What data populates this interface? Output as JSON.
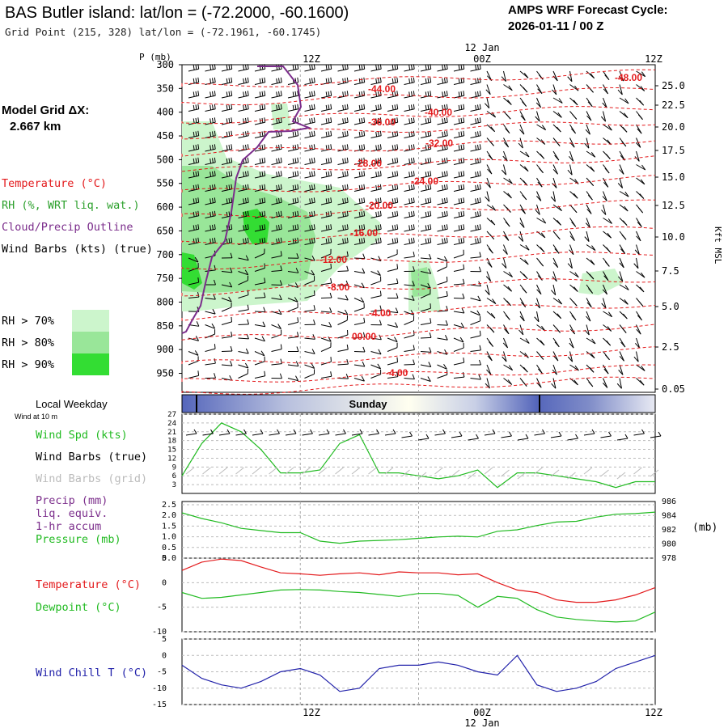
{
  "header": {
    "title": "BAS Butler island:  lat/lon = (-72.2000, -60.1600)",
    "subtitle": "Grid Point (215, 328) lat/lon = (-72.1961, -60.1745)",
    "cycle_label": "AMPS WRF Forecast Cycle:",
    "cycle_value": "2026-01-11 / 00  Z"
  },
  "sidebar": {
    "grid_label": "Model Grid ΔX:",
    "grid_value": "2.667 km",
    "legend": [
      {
        "text": "Temperature (°C)",
        "color": "#e31a1c"
      },
      {
        "text": "RH (%, WRT liq. wat.)",
        "color": "#2ca02c"
      },
      {
        "text": "Cloud/Precip Outline",
        "color": "#7b2d8b"
      },
      {
        "text": "Wind Barbs (kts) (true)",
        "color": "#000000"
      }
    ],
    "rh_keys": [
      {
        "text": "RH > 70%",
        "color": "#ccf5cc"
      },
      {
        "text": "RH > 80%",
        "color": "#99e699"
      },
      {
        "text": "RH > 90%",
        "color": "#33dd33"
      }
    ]
  },
  "time_axis": {
    "top_labels": [
      "12Z",
      "00Z",
      "12Z"
    ],
    "date_label": "12 Jan",
    "bottom_labels": [
      "12Z",
      "00Z",
      "12Z"
    ],
    "bottom_date": "12 Jan"
  },
  "weekday": {
    "label": "Local Weekday",
    "day": "Sunday",
    "sublabel": "Wind at 10 m"
  },
  "panels": {
    "wind": {
      "labels": [
        {
          "text": "Wind Spd (kts)",
          "color": "#22bb22"
        },
        {
          "text": "Wind Barbs (true)",
          "color": "#000000"
        },
        {
          "text": "Wind Barbs (grid)",
          "color": "#bbbbbb"
        }
      ]
    },
    "pressure": {
      "labels": [
        {
          "text": "Precip (mm)",
          "color": "#7b2d8b"
        },
        {
          "text": "liq. equiv.",
          "color": "#7b2d8b"
        },
        {
          "text": "1-hr accum",
          "color": "#7b2d8b"
        },
        {
          "text": "Pressure (mb)",
          "color": "#22bb22"
        }
      ],
      "right_unit": "(mb)"
    },
    "temp": {
      "labels": [
        {
          "text": "Temperature (°C)",
          "color": "#e31a1c"
        },
        {
          "text": "Dewpoint (°C)",
          "color": "#22bb22"
        }
      ]
    },
    "chill": {
      "labels": [
        {
          "text": "Wind Chill T (°C)",
          "color": "#2222aa"
        }
      ]
    }
  },
  "chart_data": [
    {
      "type": "heatmap",
      "y_axis_label": "P (mb)",
      "y_ticks": [
        300,
        350,
        400,
        450,
        500,
        550,
        600,
        650,
        700,
        750,
        800,
        850,
        900,
        950
      ],
      "right_axis_label": "Kft MSL",
      "right_ticks": [
        "25.0",
        "22.5",
        "20.0",
        "17.5",
        "15.0",
        "12.5",
        "10.0",
        "7.5",
        "5.0",
        "2.5",
        "0.05"
      ],
      "temperature_contour_labels": [
        "-48.00",
        "-44.00",
        "-40.00",
        "-36.00",
        "-32.00",
        "-28.00",
        "-24.00",
        "-20.00",
        "-16.00",
        "-12.00",
        "-8.00",
        "-4.00",
        "00.00",
        "-4.00"
      ]
    },
    {
      "type": "line",
      "name": "Wind Spd (kts)",
      "y_ticks": [
        3,
        6,
        9,
        12,
        15,
        18,
        21,
        24,
        27
      ],
      "ylim": [
        0,
        27
      ],
      "x_hours": [
        0,
        2,
        4,
        6,
        8,
        10,
        12,
        14,
        16,
        18,
        20,
        22,
        24,
        26,
        28,
        30,
        32,
        34,
        36,
        38,
        40,
        42,
        44,
        46,
        48
      ],
      "values": [
        6,
        17,
        24,
        21,
        15,
        7,
        7,
        8,
        17,
        20,
        7,
        7,
        6,
        5,
        6,
        8,
        2,
        7,
        7,
        6,
        5,
        4,
        2,
        4,
        4
      ]
    },
    {
      "type": "line",
      "name": "Pressure (mb)",
      "left_ticks": [
        "0.0",
        "0.5",
        "1.0",
        "1.5",
        "2.0",
        "2.5"
      ],
      "right_ticks": [
        978,
        980,
        982,
        984,
        986
      ],
      "ylim": [
        978,
        986
      ],
      "x_hours": [
        0,
        2,
        4,
        6,
        8,
        10,
        12,
        14,
        16,
        18,
        20,
        22,
        24,
        26,
        28,
        30,
        32,
        34,
        36,
        38,
        40,
        42,
        44,
        46,
        48
      ],
      "values": [
        984.4,
        983.6,
        983.0,
        982.2,
        981.9,
        981.6,
        981.6,
        980.4,
        980.1,
        980.4,
        980.5,
        980.6,
        980.8,
        981.0,
        981.1,
        981.0,
        981.8,
        982.0,
        982.6,
        983.1,
        983.2,
        983.8,
        984.2,
        984.3,
        984.5
      ]
    },
    {
      "type": "line",
      "y_ticks": [
        5,
        0,
        -5,
        -10
      ],
      "ylim": [
        -10,
        5
      ],
      "x_hours": [
        0,
        2,
        4,
        6,
        8,
        10,
        12,
        14,
        16,
        18,
        20,
        22,
        24,
        26,
        28,
        30,
        32,
        34,
        36,
        38,
        40,
        42,
        44,
        46,
        48
      ],
      "series": [
        {
          "name": "Temperature (°C)",
          "color": "#e31a1c",
          "values": [
            2.5,
            4.2,
            4.8,
            4.5,
            3.2,
            2.0,
            1.8,
            1.5,
            1.8,
            2.0,
            1.6,
            2.2,
            2.0,
            2.0,
            1.6,
            1.8,
            0.0,
            -1.5,
            -2.0,
            -3.5,
            -4.0,
            -4.0,
            -3.5,
            -2.5,
            -1.0
          ]
        },
        {
          "name": "Dewpoint (°C)",
          "color": "#22bb22",
          "values": [
            -2.0,
            -3.2,
            -3.0,
            -2.5,
            -2.0,
            -1.5,
            -1.4,
            -1.5,
            -1.8,
            -2.0,
            -2.4,
            -2.8,
            -2.2,
            -2.2,
            -2.6,
            -5.0,
            -2.8,
            -3.2,
            -5.5,
            -7.0,
            -7.5,
            -7.8,
            -8.0,
            -7.8,
            -6.0
          ]
        }
      ]
    },
    {
      "type": "line",
      "name": "Wind Chill T (°C)",
      "y_ticks": [
        5,
        0,
        -5,
        -10,
        -15
      ],
      "ylim": [
        -15,
        5
      ],
      "x_hours": [
        0,
        2,
        4,
        6,
        8,
        10,
        12,
        14,
        16,
        18,
        20,
        22,
        24,
        26,
        28,
        30,
        32,
        34,
        36,
        38,
        40,
        42,
        44,
        46,
        48
      ],
      "values": [
        -3,
        -7,
        -9,
        -10,
        -8,
        -5,
        -4,
        -6,
        -11,
        -10,
        -4,
        -3,
        -3,
        -2,
        -3,
        -5,
        -6,
        0,
        -9,
        -11,
        -10,
        -8,
        -4,
        -2,
        0
      ]
    }
  ]
}
